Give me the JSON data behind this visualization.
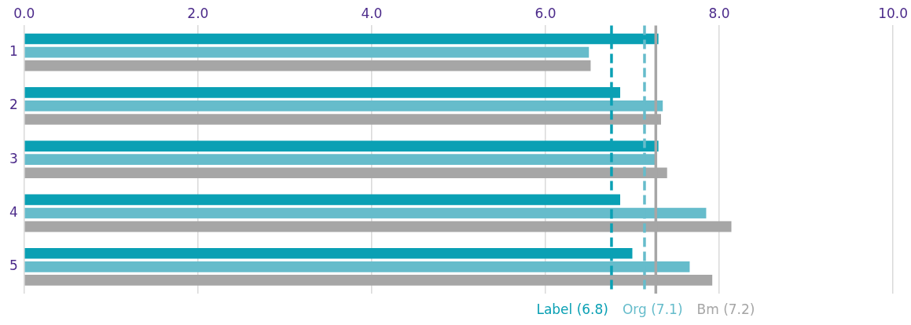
{
  "chart_data": {
    "type": "bar",
    "orientation": "horizontal",
    "categories": [
      "1",
      "2",
      "3",
      "4",
      "5"
    ],
    "series": [
      {
        "color": "#0aa0b4",
        "values": [
          7.3,
          6.86,
          7.3,
          6.86,
          7.0
        ]
      },
      {
        "color": "#66bccb",
        "values": [
          6.5,
          7.35,
          7.28,
          7.85,
          7.66
        ]
      },
      {
        "color": "#a6a6a6",
        "values": [
          6.52,
          7.33,
          7.4,
          8.14,
          7.92
        ]
      }
    ],
    "xlim": [
      0,
      10
    ],
    "xticks": [
      {
        "value": 0,
        "label": "0.0"
      },
      {
        "value": 2,
        "label": "2.0"
      },
      {
        "value": 4,
        "label": "4.0"
      },
      {
        "value": 6,
        "label": "6.0"
      },
      {
        "value": 8,
        "label": "8.0"
      },
      {
        "value": 10,
        "label": "10.0"
      }
    ],
    "grid": "x",
    "legend": false,
    "ref_lines": [
      {
        "axis": "x",
        "value": 6.76,
        "label": "Label (6.8)",
        "color": "#0aa0b4",
        "line_style": "dashed"
      },
      {
        "axis": "x",
        "value": 7.14,
        "label": "Org (7.1)",
        "color": "#66bccb",
        "line_style": "dashed"
      },
      {
        "axis": "x",
        "value": 7.27,
        "label": "Bm (7.2)",
        "color": "#a6a6a6",
        "line_style": "solid"
      }
    ]
  }
}
